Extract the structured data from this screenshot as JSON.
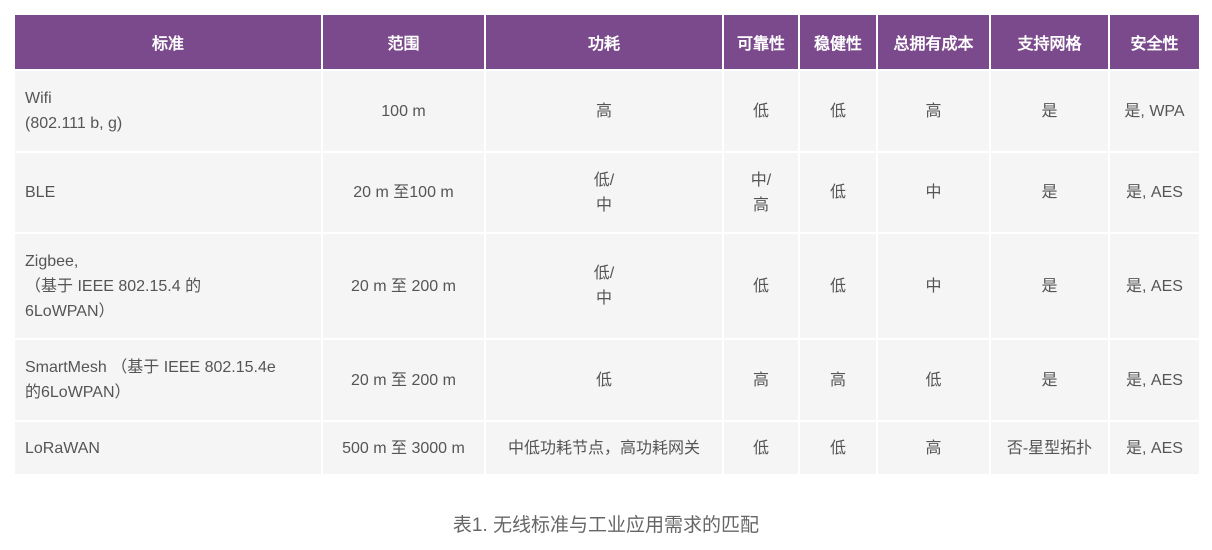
{
  "table": {
    "headers": [
      "标准",
      "范围",
      "功耗",
      "可靠性",
      "稳健性",
      "总拥有成本",
      "支持网格",
      "安全性"
    ],
    "rows": [
      [
        "Wifi\n(802.111 b, g)",
        "100 m",
        "高",
        "低",
        "低",
        "高",
        "是",
        "是, WPA"
      ],
      [
        "BLE",
        "20 m 至100 m",
        "低/\n中",
        "中/\n高",
        "低",
        "中",
        "是",
        "是, AES"
      ],
      [
        "Zigbee,\n（基于 IEEE 802.15.4 的\n6LoWPAN）",
        "20 m 至 200 m",
        "低/\n中",
        "低",
        "低",
        "中",
        "是",
        "是, AES"
      ],
      [
        "SmartMesh （基于 IEEE 802.15.4e\n的6LoWPAN）",
        "20 m 至 200 m",
        "低",
        "高",
        "高",
        "低",
        "是",
        "是, AES"
      ],
      [
        "LoRaWAN",
        "500 m 至 3000 m",
        "中低功耗节点，高功耗网关",
        "低",
        "低",
        "高",
        "否-星型拓扑",
        "是, AES"
      ]
    ]
  },
  "caption": "表1. 无线标准与工业应用需求的匹配",
  "colors": {
    "header_bg": "#7b4a8c",
    "cell_bg": "#f5f5f5"
  }
}
